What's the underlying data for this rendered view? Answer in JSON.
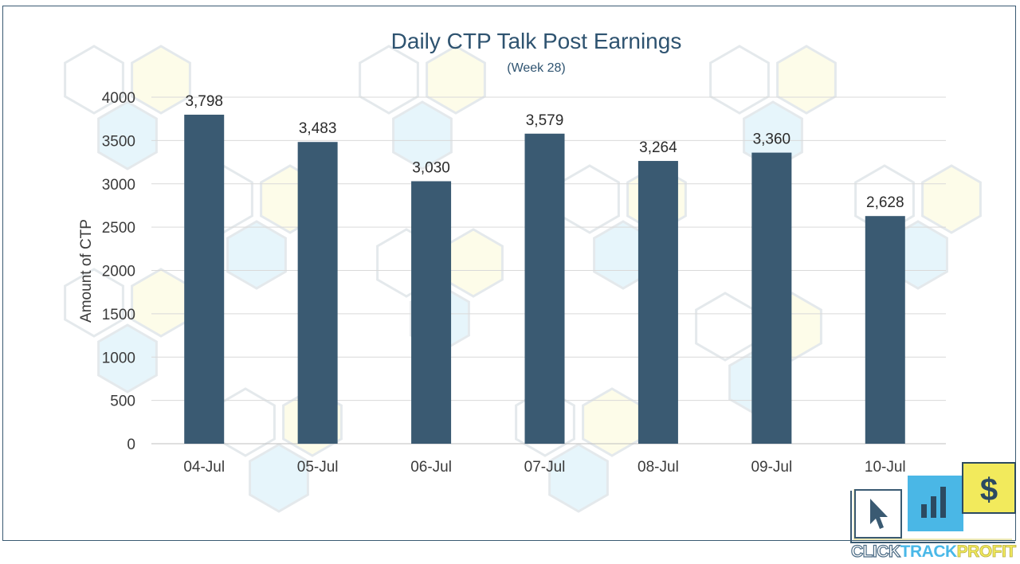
{
  "chart_data": {
    "type": "bar",
    "title": "Daily CTP Talk Post Earnings",
    "subtitle": "(Week 28)",
    "ylabel": "Amount of CTP",
    "xlabel": "",
    "categories": [
      "04-Jul",
      "05-Jul",
      "06-Jul",
      "07-Jul",
      "08-Jul",
      "09-Jul",
      "10-Jul"
    ],
    "values": [
      3798,
      3483,
      3030,
      3579,
      3264,
      3360,
      2628
    ],
    "data_labels": [
      "3,798",
      "3,483",
      "3,030",
      "3,579",
      "3,264",
      "3,360",
      "2,628"
    ],
    "ylim": [
      0,
      4000
    ],
    "yticks": [
      0,
      500,
      1000,
      1500,
      2000,
      2500,
      3000,
      3500,
      4000
    ],
    "grid": true,
    "legend": "none",
    "bar_color": "#3a5a72"
  },
  "logo": {
    "icons": [
      "cursor-icon",
      "bar-chart-icon",
      "dollar-icon"
    ],
    "word1": "CLICK",
    "word2": "TRACK",
    "word3": "PROFIT",
    "colors": {
      "navy": "#3a5a72",
      "blue": "#49b8e8",
      "yellow": "#f2ea5c"
    }
  }
}
